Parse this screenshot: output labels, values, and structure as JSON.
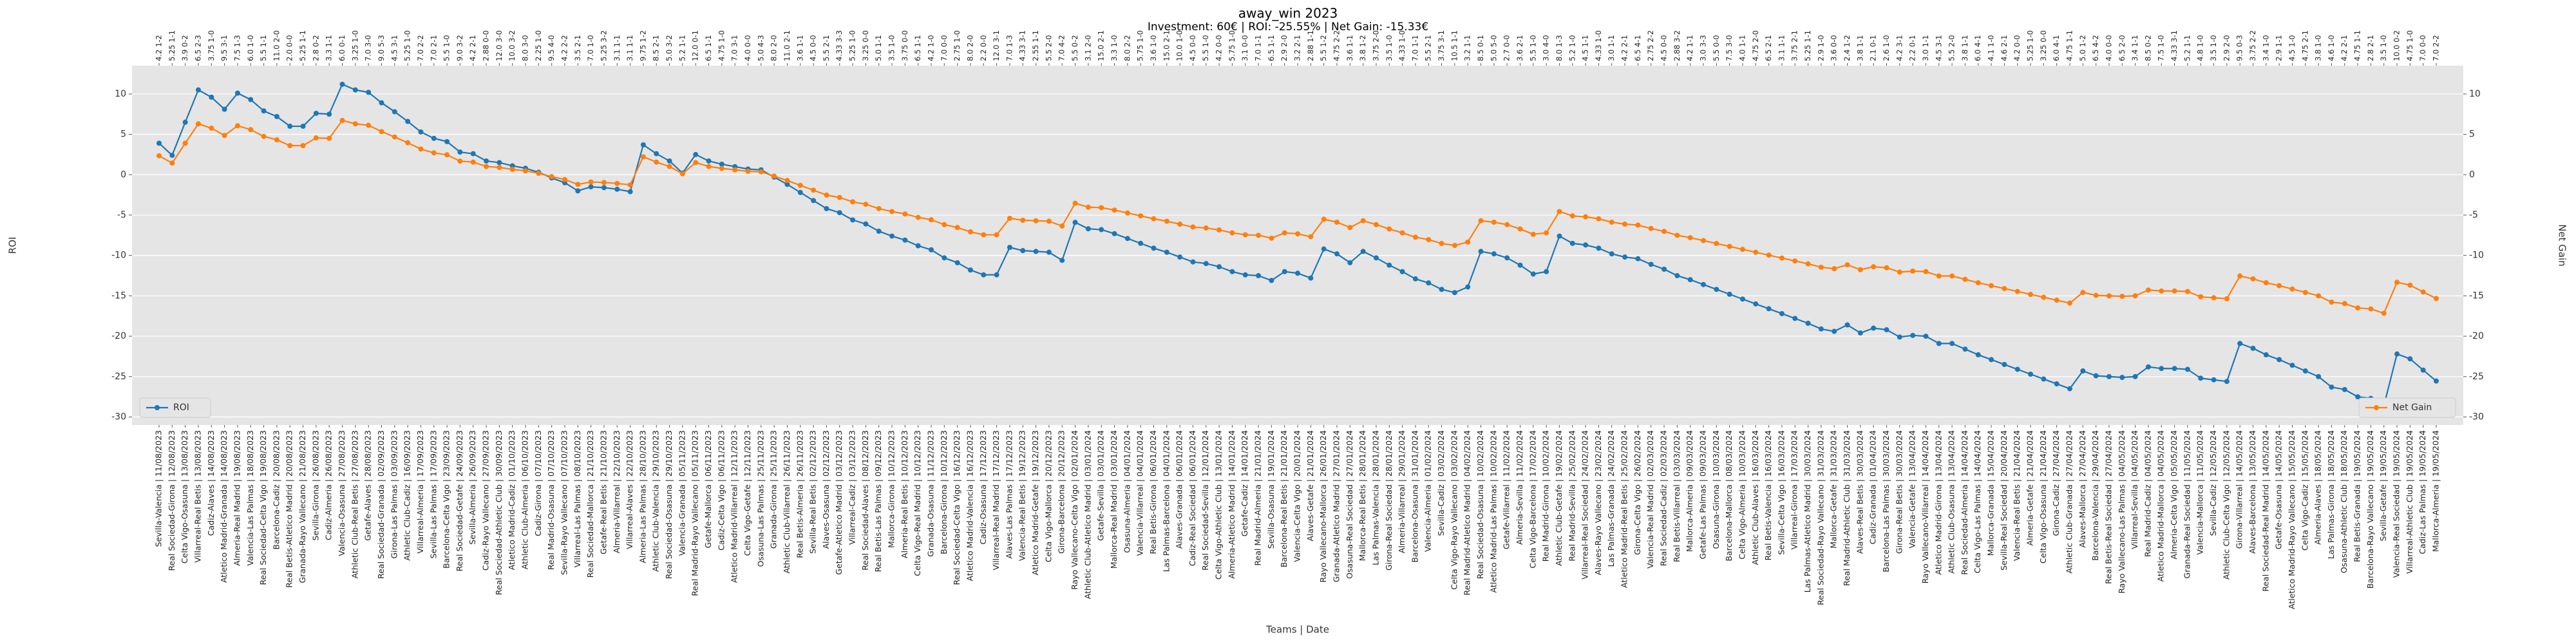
{
  "chart_data": {
    "type": "line",
    "title": "away_win 2023",
    "subtitle": "Investment: 60€ | ROI: -25.55% | Net Gain: -15.33€",
    "x_label": "Teams | Date",
    "y_label": "ROI",
    "y2_label": "Net Gain",
    "categories": [
      "Sevilla-Valencia | 11/08/2023",
      "Real Sociedad-Girona | 12/08/2023",
      "Celta Vigo-Osasuna | 13/08/2023",
      "Villarreal-Real Betis | 13/08/2023",
      "Cadiz-Alaves | 14/08/2023",
      "Atletico Madrid-Granada | 14/08/2023",
      "Almeria-Real Madrid | 19/08/2023",
      "Valencia-Las Palmas | 18/08/2023",
      "Real Sociedad-Celta Vigo | 19/08/2023",
      "Barcelona-Cadiz | 20/08/2023",
      "Real Betis-Atletico Madrid | 20/08/2023",
      "Granada-Rayo Vallecano | 21/08/2023",
      "Sevilla-Girona | 26/08/2023",
      "Cadiz-Almeria | 26/08/2023",
      "Valencia-Osasuna | 27/08/2023",
      "Athletic Club-Real Betis | 27/08/2023",
      "Getafe-Alaves | 28/08/2023",
      "Real Sociedad-Granada | 02/09/2023",
      "Girona-Las Palmas | 03/09/2023",
      "Athletic Club-Cadiz | 16/09/2023",
      "Villarreal-Almeria | 17/09/2023",
      "Sevilla-Las Palmas | 17/09/2023",
      "Barcelona-Celta Vigo | 23/09/2023",
      "Real Sociedad-Getafe | 24/09/2023",
      "Sevilla-Almeria | 26/09/2023",
      "Cadiz-Rayo Vallecano | 27/09/2023",
      "Real Sociedad-Athletic Club | 30/09/2023",
      "Atletico Madrid-Cadiz | 01/10/2023",
      "Athletic Club-Almeria | 06/10/2023",
      "Cadiz-Girona | 07/10/2023",
      "Real Madrid-Osasuna | 07/10/2023",
      "Sevilla-Rayo Vallecano | 07/10/2023",
      "Villarreal-Las Palmas | 08/10/2023",
      "Real Sociedad-Mallorca | 21/10/2023",
      "Getafe-Real Betis | 21/10/2023",
      "Almeria-Villarreal | 22/10/2023",
      "Villarreal-Alaves | 22/10/2023",
      "Almeria-Las Palmas | 28/10/2023",
      "Athletic Club-Valencia | 29/10/2023",
      "Real Sociedad-Osasuna | 29/10/2023",
      "Valencia-Granada | 05/11/2023",
      "Real Madrid-Rayo Vallecano | 05/11/2023",
      "Getafe-Mallorca | 06/11/2023",
      "Cadiz-Celta Vigo | 06/11/2023",
      "Atletico Madrid-Villarreal | 12/11/2023",
      "Celta Vigo-Getafe | 12/11/2023",
      "Osasuna-Las Palmas | 25/11/2023",
      "Granada-Girona | 25/11/2023",
      "Athletic Club-Villarreal | 26/11/2023",
      "Real Betis-Almeria | 26/11/2023",
      "Sevilla-Real Betis | 02/12/2023",
      "Alaves-Osasuna | 02/12/2023",
      "Getafe-Atletico Madrid | 03/12/2023",
      "Villarreal-Cadiz | 03/12/2023",
      "Real Sociedad-Alaves | 08/12/2023",
      "Real Betis-Las Palmas | 09/12/2023",
      "Mallorca-Girona | 10/12/2023",
      "Almeria-Real Betis | 10/12/2023",
      "Celta Vigo-Real Madrid | 10/12/2023",
      "Granada-Osasuna | 11/12/2023",
      "Barcelona-Girona | 10/12/2023",
      "Real Sociedad-Celta Vigo | 16/12/2023",
      "Atletico Madrid-Valencia | 16/12/2023",
      "Cadiz-Osasuna | 17/12/2023",
      "Villarreal-Real Madrid | 17/12/2023",
      "Alaves-Las Palmas | 17/12/2023",
      "Valencia-Real Betis | 19/12/2023",
      "Atletico Madrid-Getafe | 19/12/2023",
      "Celta Vigo-Mallorca | 20/12/2023",
      "Girona-Barcelona | 20/12/2023",
      "Rayo Vallecano-Celta Vigo | 02/01/2024",
      "Athletic Club-Atletico Madrid | 03/01/2024",
      "Getafe-Sevilla | 03/01/2024",
      "Mallorca-Real Madrid | 03/01/2024",
      "Osasuna-Almeria | 04/01/2024",
      "Valencia-Villarreal | 04/01/2024",
      "Real Betis-Girona | 06/01/2024",
      "Las Palmas-Barcelona | 04/01/2024",
      "Alaves-Granada | 06/01/2024",
      "Cadiz-Real Sociedad | 06/01/2024",
      "Real Sociedad-Sevilla | 12/01/2024",
      "Celta Vigo-Athletic Club | 13/01/2024",
      "Almeria-Atletico Madrid | 14/01/2024",
      "Getafe-Cadiz | 14/01/2024",
      "Real Madrid-Almeria | 21/01/2024",
      "Sevilla-Osasuna | 19/01/2024",
      "Barcelona-Real Betis | 21/01/2024",
      "Valencia-Celta Vigo | 20/01/2024",
      "Alaves-Getafe | 21/01/2024",
      "Rayo Vallecano-Mallorca | 26/01/2024",
      "Granada-Atletico Madrid | 27/01/2024",
      "Osasuna-Real Sociedad | 27/01/2024",
      "Mallorca-Real Betis | 28/01/2024",
      "Las Palmas-Valencia | 28/01/2024",
      "Girona-Real Sociedad | 28/01/2024",
      "Almeria-Villarreal | 29/01/2024",
      "Barcelona-Osasuna | 31/01/2024",
      "Valencia-Almeria | 01/02/2024",
      "Sevilla-Cadiz | 03/02/2024",
      "Celta Vigo-Rayo Vallecano | 03/02/2024",
      "Real Madrid-Atletico Madrid | 04/02/2024",
      "Real Sociedad-Osasuna | 10/02/2024",
      "Atletico Madrid-Las Palmas | 10/02/2024",
      "Getafe-Villarreal | 11/02/2024",
      "Almeria-Sevilla | 11/02/2024",
      "Celta Vigo-Barcelona | 17/02/2024",
      "Real Madrid-Girona | 10/02/2024",
      "Athletic Club-Getafe | 19/02/2024",
      "Real Madrid-Sevilla | 25/02/2024",
      "Villarreal-Real Sociedad | 24/02/2024",
      "Alaves-Rayo Vallecano | 23/02/2024",
      "Las Palmas-Granada | 24/02/2024",
      "Atletico Madrid-Real Betis | 25/02/2024",
      "Girona-Celta Vigo | 26/02/2024",
      "Valencia-Real Madrid | 02/03/2024",
      "Real Sociedad-Cadiz | 02/03/2024",
      "Real Betis-Villarreal | 03/03/2024",
      "Mallorca-Almeria | 09/03/2024",
      "Getafe-Las Palmas | 09/03/2024",
      "Osasuna-Girona | 10/03/2024",
      "Barcelona-Mallorca | 08/03/2024",
      "Celta Vigo-Almeria | 10/03/2024",
      "Athletic Club-Alaves | 16/03/2024",
      "Real Betis-Valencia | 16/03/2024",
      "Sevilla-Celta Vigo | 16/03/2024",
      "Villarreal-Girona | 17/03/2024",
      "Las Palmas-Atletico Madrid | 30/03/2024",
      "Real Sociedad-Rayo Vallecano | 31/03/2024",
      "Mallorca-Getafe | 31/03/2024",
      "Real Madrid-Athletic Club | 31/03/2024",
      "Alaves-Real Betis | 30/03/2024",
      "Cadiz-Granada | 01/04/2024",
      "Barcelona-Las Palmas | 30/03/2024",
      "Girona-Real Betis | 30/03/2024",
      "Valencia-Getafe | 13/04/2024",
      "Rayo Vallecano-Villarreal | 14/04/2024",
      "Atletico Madrid-Girona | 13/04/2024",
      "Athletic Club-Osasuna | 13/04/2024",
      "Real Sociedad-Almeria | 14/04/2024",
      "Celta Vigo-Las Palmas | 14/04/2024",
      "Mallorca-Granada | 15/04/2024",
      "Sevilla-Real Sociedad | 20/04/2024",
      "Valencia-Real Betis | 21/04/2024",
      "Almeria-Getafe | 21/04/2024",
      "Celta Vigo-Osasuna | 21/04/2024",
      "Girona-Cadiz | 27/04/2024",
      "Athletic Club-Granada | 27/04/2024",
      "Alaves-Mallorca | 27/04/2024",
      "Barcelona-Valencia | 29/04/2024",
      "Real Betis-Real Sociedad | 27/04/2024",
      "Rayo Vallecano-Las Palmas | 04/05/2024",
      "Villarreal-Sevilla | 04/05/2024",
      "Real Madrid-Cadiz | 04/05/2024",
      "Atletico Madrid-Mallorca | 04/05/2024",
      "Almeria-Celta Vigo | 05/05/2024",
      "Granada-Real Sociedad | 11/05/2024",
      "Valencia-Mallorca | 11/05/2024",
      "Sevilla-Cadiz | 12/05/2024",
      "Athletic Club-Celta Vigo | 12/05/2024",
      "Girona-Villarreal | 14/05/2024",
      "Alaves-Barcelona | 13/05/2024",
      "Real Sociedad-Real Madrid | 14/05/2024",
      "Getafe-Osasuna | 14/05/2024",
      "Atletico Madrid-Rayo Vallecano | 15/05/2024",
      "Celta Vigo-Cadiz | 15/05/2024",
      "Almeria-Alaves | 18/05/2024",
      "Las Palmas-Girona | 18/05/2024",
      "Osasuna-Athletic Club | 18/05/2024",
      "Real Betis-Granada | 19/05/2024",
      "Barcelona-Rayo Vallecano | 19/05/2024",
      "Sevilla-Getafe | 19/05/2024",
      "Valencia-Real Sociedad | 19/05/2024",
      "Villarreal-Athletic Club | 19/05/2024",
      "Cadiz-Las Palmas | 19/05/2024",
      "Mallorca-Almeria | 19/05/2024"
    ],
    "top_labels": [
      "4.2 1-2",
      "5.25 1-1",
      "3.9 0-2",
      "6.5 2-3",
      "3.75 1-0",
      "9.5 3-1",
      "7.5 1-3",
      "6.0 1-0",
      "5.5 1-1",
      "11.0 2-0",
      "2.0 0-0",
      "5.25 1-1",
      "2.8 0-2",
      "3.3 1-1",
      "6.0 0-1",
      "3.25 1-0",
      "7.0 3-0",
      "9.0 5-3",
      "4.5 3-1",
      "5.25 1-0",
      "7.0 2-2",
      "7.0 2-1",
      "5.5 1-0",
      "9.0 3-2",
      "4.2 2-1",
      "2.88 0-0",
      "12.0 3-0",
      "10.0 3-2",
      "8.0 3-0",
      "2.25 1-0",
      "9.5 4-0",
      "4.2 2-2",
      "3.5 2-1",
      "7.0 1-0",
      "5.25 3-2",
      "3.1 1-1",
      "3.1 1-1",
      "9.75 1-2",
      "8.5 2-1",
      "5.0 3-2",
      "5.2 1-1",
      "12.0 0-1",
      "6.5 1-1",
      "4.75 1-0",
      "7.0 3-1",
      "4.0 0-0",
      "5.0 4-3",
      "8.0 2-0",
      "11.0 2-1",
      "3.6 1-1",
      "4.5 0-0",
      "5.5 2-1",
      "4.33 3-3",
      "5.25 1-0",
      "3.25 0-0",
      "5.0 1-1",
      "3.5 1-0",
      "3.75 0-0",
      "6.5 1-1",
      "4.2 1-0",
      "7.0 0-0",
      "2.75 1-0",
      "8.0 2-0",
      "2.2 0-0",
      "12.0 3-1",
      "7.0 1-3",
      "4.33 3-1",
      "2.55 1-1",
      "5.5 2-0",
      "7.0 4-2",
      "5.5 0-2",
      "3.1 2-0",
      "15.0 2-1",
      "3.3 1-0",
      "8.0 2-2",
      "5.75 1-0",
      "3.6 1-0",
      "15.0 2-1",
      "10.0 1-0",
      "4.5 0-0",
      "5.5 1-0",
      "4.2 0-0",
      "5.75 1-0",
      "3.1 0-0",
      "7.0 1-1",
      "6.5 1-1",
      "2.9 2-0",
      "3.2 2-1",
      "2.88 1-1",
      "5.5 1-2",
      "4.75 2-2",
      "3.6 1-1",
      "3.8 1-2",
      "3.75 2-0",
      "3.5 1-0",
      "4.33 1-0",
      "7.0 1-1",
      "5.5 2-1",
      "3.75 3-1",
      "10.5 1-1",
      "3.2 1-1",
      "8.5 0-1",
      "5.0 5-0",
      "2.7 0-0",
      "3.6 2-1",
      "5.5 1-0",
      "3.0 4-0",
      "8.0 1-3",
      "5.2 1-0",
      "4.5 1-1",
      "4.33 1-0",
      "3.0 1-1",
      "4.2 2-1",
      "6.5 4-1",
      "2.75 2-2",
      "4.5 0-0",
      "2.88 3-2",
      "4.2 1-1",
      "3.0 3-3",
      "5.5 0-0",
      "7.5 3-0",
      "4.0 1-1",
      "4.75 2-0",
      "6.5 2-1",
      "3.1 1-1",
      "3.75 2-1",
      "5.25 1-1",
      "2.9 1-0",
      "3.6 0-0",
      "2.4 1-2",
      "3.8 1-1",
      "2.1 0-1",
      "2.6 1-0",
      "4.2 3-1",
      "2.2 0-1",
      "3.0 1-1",
      "4.5 3-1",
      "5.5 2-0",
      "3.8 1-1",
      "6.0 4-1",
      "4.1 1-0",
      "4.6 2-1",
      "4.2 0-0",
      "5.25 1-0",
      "3.25 0-0",
      "6.0 4-1",
      "4.75 1-1",
      "5.0 1-2",
      "6.5 4-2",
      "4.0 0-0",
      "6.5 2-0",
      "3.4 1-1",
      "8.5 0-2",
      "7.5 1-0",
      "4.33 3-1",
      "5.2 1-1",
      "4.8 1-0",
      "3.5 1-0",
      "2.9 2-0",
      "9.5 0-3",
      "3.75 2-2",
      "3.4 1-0",
      "2.9 1-1",
      "4.5 1-0",
      "4.75 2-1",
      "3.8 1-0",
      "4.6 1-0",
      "4.2 2-1",
      "4.75 1-1",
      "2.8 2-1",
      "3.5 1-0",
      "10.0 0-2",
      "4.75 1-0",
      "7.0 0-0",
      "7.0 2-2"
    ],
    "series": [
      {
        "name": "ROI",
        "color": "#1f77b4",
        "axis": "y",
        "legend": "lower left",
        "values": [
          3.9,
          2.4,
          6.5,
          10.5,
          9.6,
          8.1,
          10.1,
          9.3,
          7.9,
          7.2,
          6.0,
          6.0,
          7.6,
          7.5,
          11.2,
          10.5,
          10.2,
          8.9,
          7.8,
          6.6,
          5.3,
          4.5,
          4.1,
          2.8,
          2.6,
          1.7,
          1.5,
          1.1,
          0.8,
          0.3,
          -0.4,
          -1.0,
          -2.0,
          -1.5,
          -1.6,
          -1.8,
          -2.1,
          3.7,
          2.6,
          1.7,
          0.2,
          2.5,
          1.7,
          1.3,
          1.0,
          0.7,
          0.6,
          -0.3,
          -1.2,
          -2.2,
          -3.2,
          -4.2,
          -4.7,
          -5.6,
          -6.1,
          -7.0,
          -7.6,
          -8.1,
          -8.8,
          -9.3,
          -10.3,
          -10.9,
          -11.8,
          -12.4,
          -12.4,
          -9.0,
          -9.4,
          -9.5,
          -9.6,
          -10.6,
          -5.9,
          -6.7,
          -6.8,
          -7.3,
          -7.9,
          -8.5,
          -9.1,
          -9.6,
          -10.2,
          -10.8,
          -11.0,
          -11.4,
          -12.0,
          -12.4,
          -12.5,
          -13.1,
          -12.0,
          -12.2,
          -12.8,
          -9.2,
          -9.8,
          -10.9,
          -9.5,
          -10.3,
          -11.2,
          -12.0,
          -12.9,
          -13.4,
          -14.2,
          -14.6,
          -13.9,
          -9.5,
          -9.8,
          -10.3,
          -11.2,
          -12.3,
          -12.0,
          -7.6,
          -8.5,
          -8.7,
          -9.1,
          -9.8,
          -10.2,
          -10.4,
          -11.1,
          -11.7,
          -12.5,
          -13.0,
          -13.6,
          -14.2,
          -14.8,
          -15.4,
          -16.0,
          -16.6,
          -17.2,
          -17.8,
          -18.4,
          -19.1,
          -19.4,
          -18.6,
          -19.6,
          -19.0,
          -19.2,
          -20.1,
          -19.9,
          -20.0,
          -20.9,
          -20.9,
          -21.6,
          -22.3,
          -22.9,
          -23.5,
          -24.1,
          -24.7,
          -25.3,
          -25.9,
          -26.5,
          -24.3,
          -24.9,
          -25.0,
          -25.1,
          -25.0,
          -23.8,
          -24.0,
          -24.0,
          -24.1,
          -25.2,
          -25.4,
          -25.6,
          -20.9,
          -21.5,
          -22.3,
          -22.9,
          -23.6,
          -24.3,
          -25.0,
          -26.3,
          -26.6,
          -27.5,
          -27.7,
          -28.6,
          -22.2,
          -22.8,
          -24.2,
          -25.55
        ]
      },
      {
        "name": "Net Gain",
        "color": "#ff7f0e",
        "axis": "y2",
        "legend": "lower right",
        "values": [
          2.34,
          1.44,
          3.9,
          6.3,
          5.76,
          4.86,
          6.06,
          5.58,
          4.74,
          4.32,
          3.6,
          3.6,
          4.56,
          4.5,
          6.72,
          6.3,
          6.12,
          5.34,
          4.68,
          3.96,
          3.18,
          2.7,
          2.46,
          1.68,
          1.56,
          1.02,
          0.9,
          0.66,
          0.48,
          0.18,
          -0.24,
          -0.6,
          -1.2,
          -0.9,
          -0.96,
          -1.08,
          -1.26,
          2.22,
          1.56,
          1.02,
          0.12,
          1.5,
          1.02,
          0.78,
          0.6,
          0.42,
          0.36,
          -0.18,
          -0.72,
          -1.32,
          -1.92,
          -2.52,
          -2.82,
          -3.36,
          -3.66,
          -4.2,
          -4.56,
          -4.86,
          -5.28,
          -5.58,
          -6.18,
          -6.54,
          -7.08,
          -7.44,
          -7.44,
          -5.4,
          -5.64,
          -5.7,
          -5.76,
          -6.36,
          -3.54,
          -4.02,
          -4.08,
          -4.38,
          -4.74,
          -5.1,
          -5.46,
          -5.76,
          -6.12,
          -6.48,
          -6.6,
          -6.84,
          -7.2,
          -7.44,
          -7.5,
          -7.86,
          -7.2,
          -7.32,
          -7.68,
          -5.52,
          -5.88,
          -6.54,
          -5.7,
          -6.18,
          -6.72,
          -7.2,
          -7.74,
          -8.04,
          -8.52,
          -8.76,
          -8.34,
          -5.7,
          -5.88,
          -6.18,
          -6.72,
          -7.38,
          -7.2,
          -4.56,
          -5.1,
          -5.22,
          -5.46,
          -5.88,
          -6.12,
          -6.24,
          -6.66,
          -7.02,
          -7.5,
          -7.8,
          -8.16,
          -8.52,
          -8.88,
          -9.24,
          -9.6,
          -9.96,
          -10.32,
          -10.68,
          -11.04,
          -11.46,
          -11.64,
          -11.16,
          -11.76,
          -11.4,
          -11.52,
          -12.06,
          -11.94,
          -12.0,
          -12.54,
          -12.54,
          -12.96,
          -13.38,
          -13.74,
          -14.1,
          -14.46,
          -14.82,
          -15.18,
          -15.54,
          -15.9,
          -14.58,
          -14.94,
          -15.0,
          -15.06,
          -15.0,
          -14.28,
          -14.4,
          -14.4,
          -14.46,
          -15.12,
          -15.24,
          -15.36,
          -12.54,
          -12.9,
          -13.38,
          -13.74,
          -14.16,
          -14.58,
          -15.0,
          -15.78,
          -15.96,
          -16.5,
          -16.62,
          -17.16,
          -13.32,
          -13.68,
          -14.52,
          -15.33
        ]
      }
    ],
    "ylim": [
      -31,
      13.5
    ],
    "yticks": [
      -30,
      -25,
      -20,
      -15,
      -10,
      -5,
      0,
      5,
      10
    ],
    "y2lim": [
      -31,
      13.5
    ],
    "y2ticks": [
      -30,
      -25,
      -20,
      -15,
      -10,
      -5,
      0,
      5,
      10
    ],
    "grid": true
  }
}
